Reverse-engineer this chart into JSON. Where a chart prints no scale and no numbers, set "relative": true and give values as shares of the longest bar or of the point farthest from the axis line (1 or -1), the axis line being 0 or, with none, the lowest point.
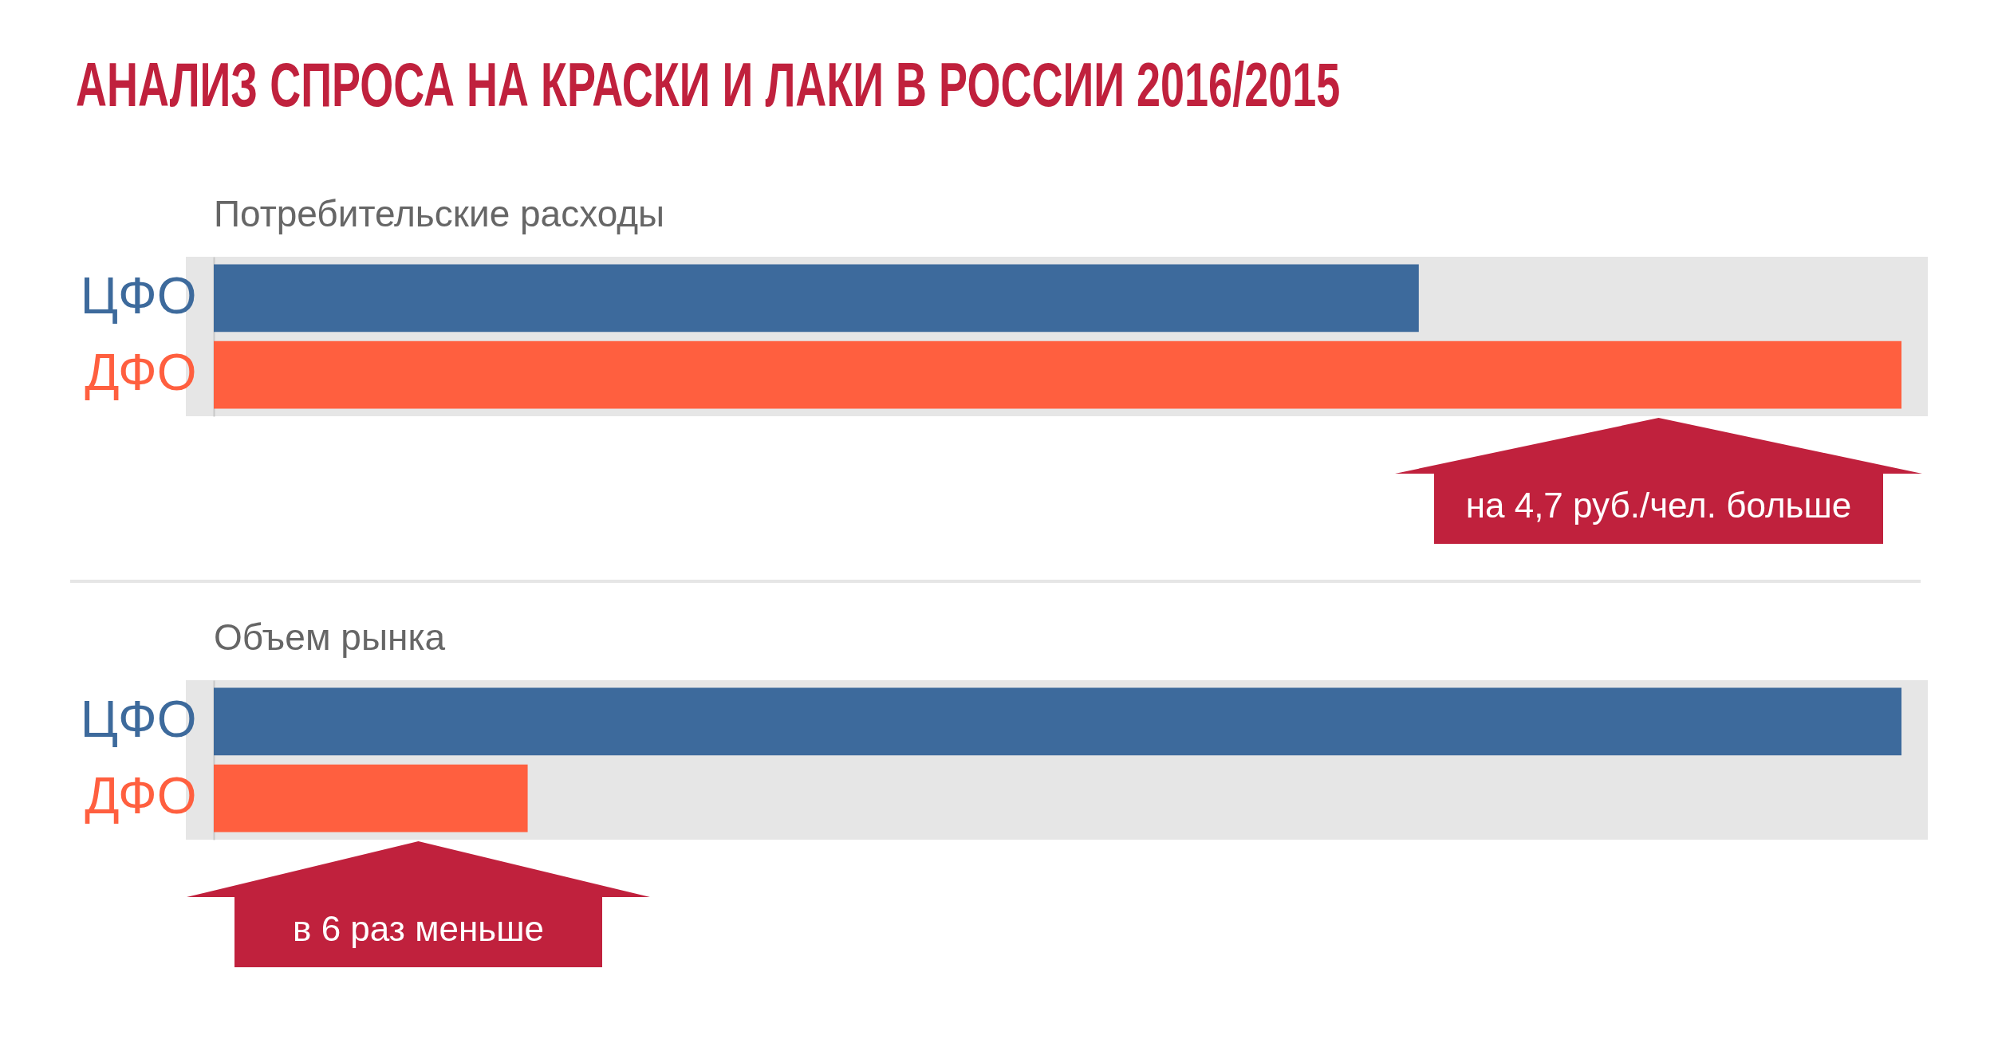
{
  "chart_data": [
    {
      "type": "bar",
      "orientation": "horizontal",
      "relative": true,
      "title": "АНАЛИЗ СПРОСА НА КРАСКИ И ЛАКИ В РОССИИ 2016/2015",
      "subtitle": "Потребительские расходы",
      "categories": [
        "ЦФО",
        "ДФО"
      ],
      "values": [
        0.714,
        1
      ],
      "colors": [
        "#3d6a9c",
        "#ff5f3f"
      ],
      "annotations": [
        "на 4,7 руб./чел. больше"
      ],
      "legend": false
    },
    {
      "type": "bar",
      "orientation": "horizontal",
      "relative": true,
      "subtitle": "Объем рынка",
      "categories": [
        "ЦФО",
        "ДФО"
      ],
      "values": [
        1,
        0.186
      ],
      "colors": [
        "#3d6a9c",
        "#ff5f3f"
      ],
      "annotations": [
        "в 6 раз меньше"
      ],
      "legend": false
    }
  ]
}
